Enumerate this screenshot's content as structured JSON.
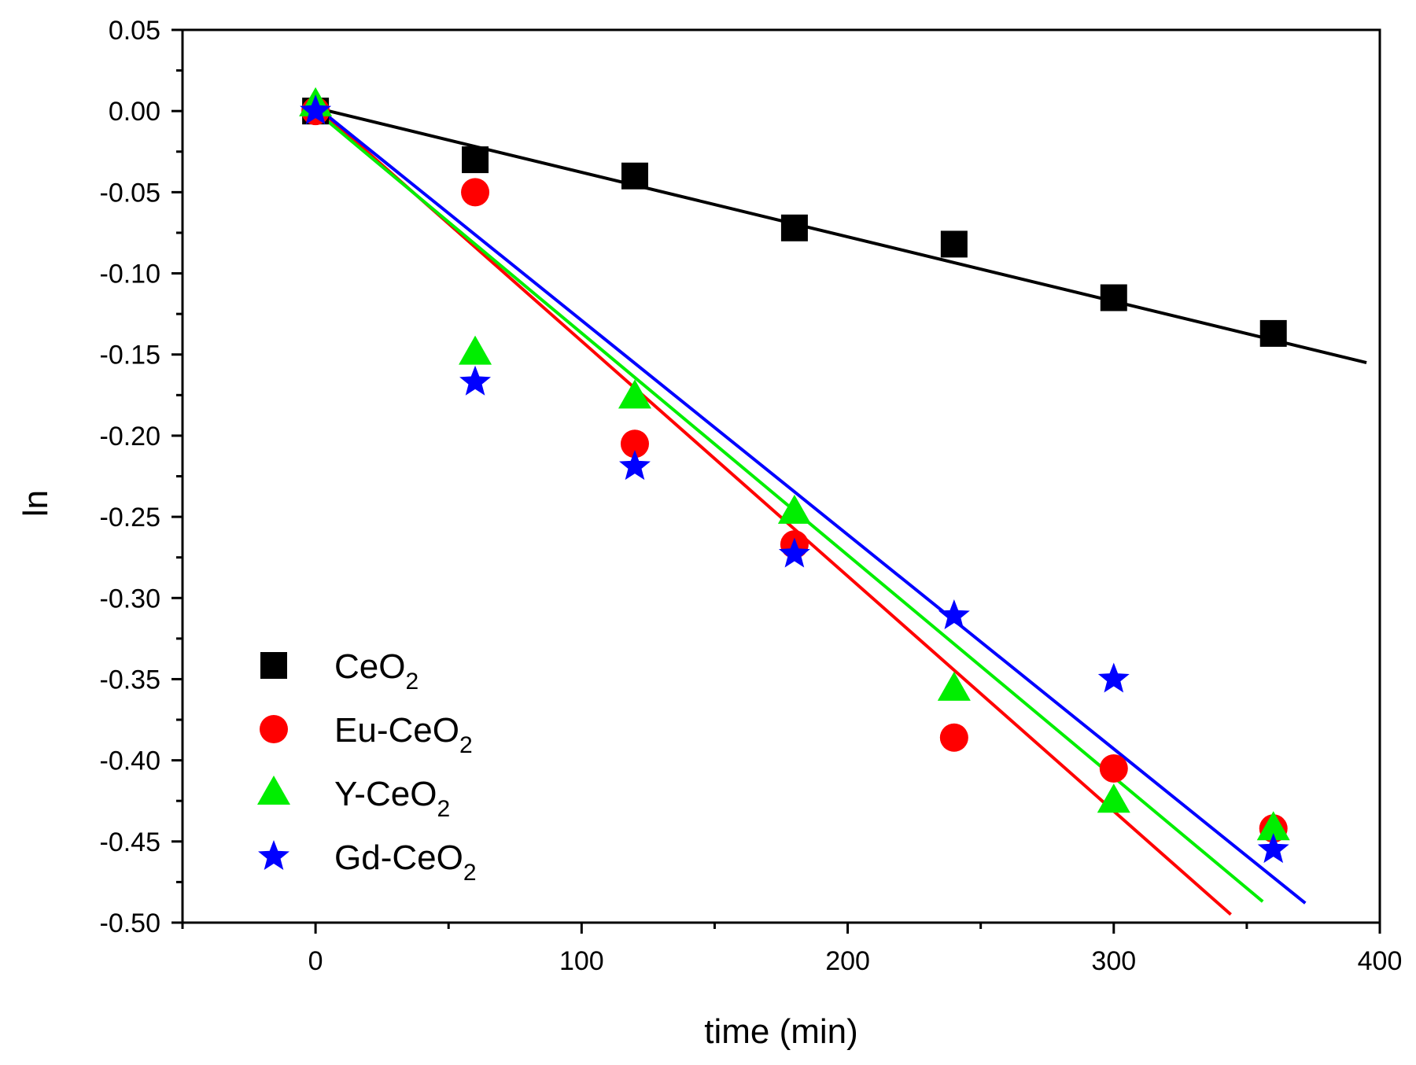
{
  "chart_data": {
    "type": "scatter",
    "xlabel": "time  (min)",
    "ylabel": "ln",
    "xlim": [
      -50,
      400
    ],
    "ylim": [
      -0.5,
      0.05
    ],
    "xticks": [
      0,
      100,
      200,
      300,
      400
    ],
    "xtick_labels": [
      "0",
      "100",
      "200",
      "300",
      "400"
    ],
    "yticks": [
      0.05,
      0.0,
      -0.05,
      -0.1,
      -0.15,
      -0.2,
      -0.25,
      -0.3,
      -0.35,
      -0.4,
      -0.45,
      -0.5
    ],
    "ytick_labels": [
      "0.05",
      "0.00",
      "-0.05",
      "-0.10",
      "-0.15",
      "-0.20",
      "-0.25",
      "-0.30",
      "-0.35",
      "-0.40",
      "-0.45",
      "-0.50"
    ],
    "grid": false,
    "legend_position": "bottom-left",
    "series": [
      {
        "name": "CeO",
        "subscript": "2",
        "marker": "square",
        "color": "#000000",
        "x": [
          0,
          60,
          120,
          180,
          240,
          300,
          360
        ],
        "y": [
          0.0,
          -0.03,
          -0.04,
          -0.072,
          -0.082,
          -0.115,
          -0.137
        ],
        "fit": {
          "x": [
            0,
            395
          ],
          "y": [
            0.002,
            -0.155
          ]
        }
      },
      {
        "name": "Eu-CeO",
        "subscript": "2",
        "marker": "circle",
        "color": "#ff0000",
        "x": [
          0,
          60,
          120,
          180,
          240,
          300,
          360
        ],
        "y": [
          0.0,
          -0.05,
          -0.205,
          -0.267,
          -0.386,
          -0.405,
          -0.442
        ],
        "fit": {
          "x": [
            0,
            344
          ],
          "y": [
            0.003,
            -0.495
          ]
        }
      },
      {
        "name": "Y-CeO",
        "subscript": "2",
        "marker": "triangle",
        "color": "#00ee00",
        "x": [
          0,
          60,
          120,
          180,
          240,
          300,
          360
        ],
        "y": [
          0.004,
          -0.149,
          -0.176,
          -0.247,
          -0.356,
          -0.425,
          -0.442
        ],
        "fit": {
          "x": [
            0,
            356
          ],
          "y": [
            0.0,
            -0.487
          ]
        }
      },
      {
        "name": "Gd-CeO",
        "subscript": "2",
        "marker": "star",
        "color": "#0000ff",
        "x": [
          0,
          60,
          120,
          180,
          240,
          300,
          360
        ],
        "y": [
          0.0,
          -0.167,
          -0.219,
          -0.273,
          -0.311,
          -0.35,
          -0.455
        ],
        "fit": {
          "x": [
            0,
            372
          ],
          "y": [
            0.003,
            -0.488
          ]
        }
      }
    ]
  }
}
